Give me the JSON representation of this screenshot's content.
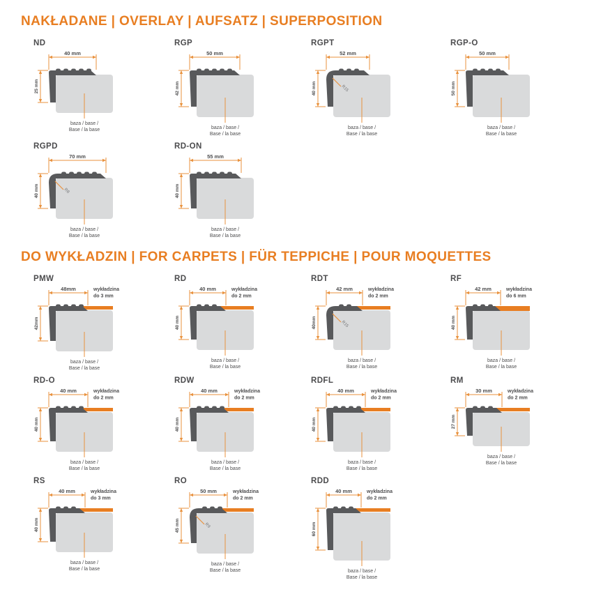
{
  "colors": {
    "accent": "#E87E22",
    "dim_line": "#E9923E",
    "profile": "#58595B",
    "base": "#D9DADB",
    "text": "#4D4D4E",
    "radius_text": "#77787A"
  },
  "labels": {
    "base_l1": "baza / base /",
    "base_l2": "Base / la base"
  },
  "sections": [
    {
      "title": "NAKŁADANE | OVERLAY | AUFSATZ | SUPERPOSITION",
      "profiles": [
        {
          "name": "ND",
          "width": "40 mm",
          "height": "25 mm"
        },
        {
          "name": "RGP",
          "width": "50 mm",
          "height": "42 mm"
        },
        {
          "name": "RGPT",
          "width": "52 mm",
          "height": "40 mm",
          "radius": "R15"
        },
        {
          "name": "RGP-O",
          "width": "50 mm",
          "height": "50 mm"
        },
        {
          "name": "RGPD",
          "width": "70 mm",
          "height": "40 mm",
          "radius": "R8"
        },
        {
          "name": "RD-ON",
          "width": "55 mm",
          "height": "40 mm"
        }
      ]
    },
    {
      "title": "DO WYKŁADZIN | FOR CARPETS | FÜR TEPPICHE | POUR MOQUETTES",
      "profiles": [
        {
          "name": "PMW",
          "width": "48mm",
          "height": "42mm",
          "carpet": {
            "l1": "wykładzina",
            "l2": "do 3 mm"
          }
        },
        {
          "name": "RD",
          "width": "40 mm",
          "height": "40 mm",
          "carpet": {
            "l1": "wykładzina",
            "l2": "do 2 mm"
          }
        },
        {
          "name": "RDT",
          "width": "42 mm",
          "height": "40mm",
          "carpet": {
            "l1": "wykładzina",
            "l2": "do 2 mm"
          },
          "radius": "R15"
        },
        {
          "name": "RF",
          "width": "42 mm",
          "height": "40 mm",
          "carpet": {
            "l1": "wykładzina",
            "l2": "do 6 mm"
          }
        },
        {
          "name": "RD-O",
          "width": "40 mm",
          "height": "40 mm",
          "carpet": {
            "l1": "wykładzina",
            "l2": "do 2 mm"
          }
        },
        {
          "name": "RDW",
          "width": "40 mm",
          "height": "40 mm",
          "carpet": {
            "l1": "wykładzina",
            "l2": "do 2 mm"
          }
        },
        {
          "name": "RDFL",
          "width": "40 mm",
          "height": "40 mm",
          "carpet": {
            "l1": "wykładzina",
            "l2": "do 2 mm"
          }
        },
        {
          "name": "RM",
          "width": "30 mm",
          "height": "27 mm",
          "carpet": {
            "l1": "wykładzina",
            "l2": "do 2 mm"
          }
        },
        {
          "name": "RS",
          "width": "40 mm",
          "height": "40 mm",
          "carpet": {
            "l1": "wykładzina",
            "l2": "do 3 mm"
          }
        },
        {
          "name": "RO",
          "width": "50 mm",
          "height": "45 mm",
          "carpet": {
            "l1": "wykładzina",
            "l2": "do 2 mm"
          },
          "radius": "R9"
        },
        {
          "name": "RDD",
          "width": "40 mm",
          "height": "60 mm",
          "carpet": {
            "l1": "wykładzina",
            "l2": "do 2 mm"
          }
        }
      ]
    }
  ]
}
